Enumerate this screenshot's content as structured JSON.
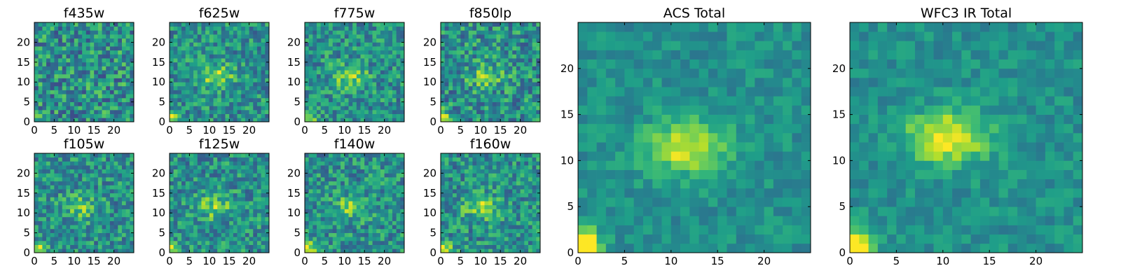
{
  "chart_data": [
    {
      "type": "heatmap",
      "title": "f435w",
      "grid": [
        25,
        25
      ],
      "extent": [
        0,
        25,
        0,
        25
      ],
      "xticks": [
        0,
        5,
        10,
        15,
        20
      ],
      "yticks": [
        0,
        5,
        10,
        15,
        20
      ],
      "colormap": "viridis",
      "source_peak": [
        11.5,
        11.5
      ],
      "peak_strength": 0.0,
      "corner_strength": 0.3,
      "noise": 0.55,
      "seed": 3
    },
    {
      "type": "heatmap",
      "title": "f625w",
      "grid": [
        25,
        25
      ],
      "extent": [
        0,
        25,
        0,
        25
      ],
      "xticks": [
        0,
        5,
        10,
        15,
        20
      ],
      "yticks": [
        0,
        5,
        10,
        15,
        20
      ],
      "colormap": "viridis",
      "source_peak": [
        11.5,
        11.5
      ],
      "peak_strength": 0.35,
      "corner_strength": 0.5,
      "noise": 0.45,
      "seed": 7
    },
    {
      "type": "heatmap",
      "title": "f775w",
      "grid": [
        25,
        25
      ],
      "extent": [
        0,
        25,
        0,
        25
      ],
      "xticks": [
        0,
        5,
        10,
        15,
        20
      ],
      "yticks": [
        0,
        5,
        10,
        15,
        20
      ],
      "colormap": "viridis",
      "source_peak": [
        11.5,
        11.5
      ],
      "peak_strength": 0.3,
      "corner_strength": 0.5,
      "noise": 0.45,
      "seed": 11
    },
    {
      "type": "heatmap",
      "title": "f850lp",
      "grid": [
        25,
        25
      ],
      "extent": [
        0,
        25,
        0,
        25
      ],
      "xticks": [
        0,
        5,
        10,
        15,
        20
      ],
      "yticks": [
        0,
        5,
        10,
        15,
        20
      ],
      "colormap": "viridis",
      "source_peak": [
        11.5,
        11.5
      ],
      "peak_strength": 0.25,
      "corner_strength": 0.6,
      "noise": 0.5,
      "seed": 13
    },
    {
      "type": "heatmap",
      "title": "f105w",
      "grid": [
        25,
        25
      ],
      "extent": [
        0,
        25,
        0,
        25
      ],
      "xticks": [
        0,
        5,
        10,
        15,
        20
      ],
      "yticks": [
        0,
        5,
        10,
        15,
        20
      ],
      "colormap": "viridis",
      "source_peak": [
        11.5,
        11.5
      ],
      "peak_strength": 0.25,
      "corner_strength": 0.5,
      "noise": 0.45,
      "seed": 17
    },
    {
      "type": "heatmap",
      "title": "f125w",
      "grid": [
        25,
        25
      ],
      "extent": [
        0,
        25,
        0,
        25
      ],
      "xticks": [
        0,
        5,
        10,
        15,
        20
      ],
      "yticks": [
        0,
        5,
        10,
        15,
        20
      ],
      "colormap": "viridis",
      "source_peak": [
        11.5,
        11.5
      ],
      "peak_strength": 0.3,
      "corner_strength": 0.5,
      "noise": 0.45,
      "seed": 19
    },
    {
      "type": "heatmap",
      "title": "f140w",
      "grid": [
        25,
        25
      ],
      "extent": [
        0,
        25,
        0,
        25
      ],
      "xticks": [
        0,
        5,
        10,
        15,
        20
      ],
      "yticks": [
        0,
        5,
        10,
        15,
        20
      ],
      "colormap": "viridis",
      "source_peak": [
        11.5,
        11.5
      ],
      "peak_strength": 0.3,
      "corner_strength": 0.6,
      "noise": 0.45,
      "seed": 23
    },
    {
      "type": "heatmap",
      "title": "f160w",
      "grid": [
        25,
        25
      ],
      "extent": [
        0,
        25,
        0,
        25
      ],
      "xticks": [
        0,
        5,
        10,
        15,
        20
      ],
      "yticks": [
        0,
        5,
        10,
        15,
        20
      ],
      "colormap": "viridis",
      "source_peak": [
        10.5,
        11.5
      ],
      "peak_strength": 0.35,
      "corner_strength": 0.6,
      "noise": 0.45,
      "seed": 29
    },
    {
      "type": "heatmap",
      "title": "ACS Total",
      "grid": [
        25,
        25
      ],
      "extent": [
        0,
        25,
        0,
        25
      ],
      "xticks": [
        0,
        5,
        10,
        15,
        20
      ],
      "yticks": [
        0,
        5,
        10,
        15,
        20
      ],
      "colormap": "viridis",
      "source_peak": [
        11.5,
        11.5
      ],
      "peak_strength": 0.45,
      "corner_strength": 0.7,
      "noise": 0.22,
      "seed": 31
    },
    {
      "type": "heatmap",
      "title": "WFC3 IR Total",
      "grid": [
        25,
        25
      ],
      "extent": [
        0,
        25,
        0,
        25
      ],
      "xticks": [
        0,
        5,
        10,
        15,
        20
      ],
      "yticks": [
        0,
        5,
        10,
        15,
        20
      ],
      "colormap": "viridis",
      "source_peak": [
        10.5,
        12.5
      ],
      "peak_strength": 0.5,
      "corner_strength": 0.75,
      "noise": 0.22,
      "seed": 37
    }
  ]
}
